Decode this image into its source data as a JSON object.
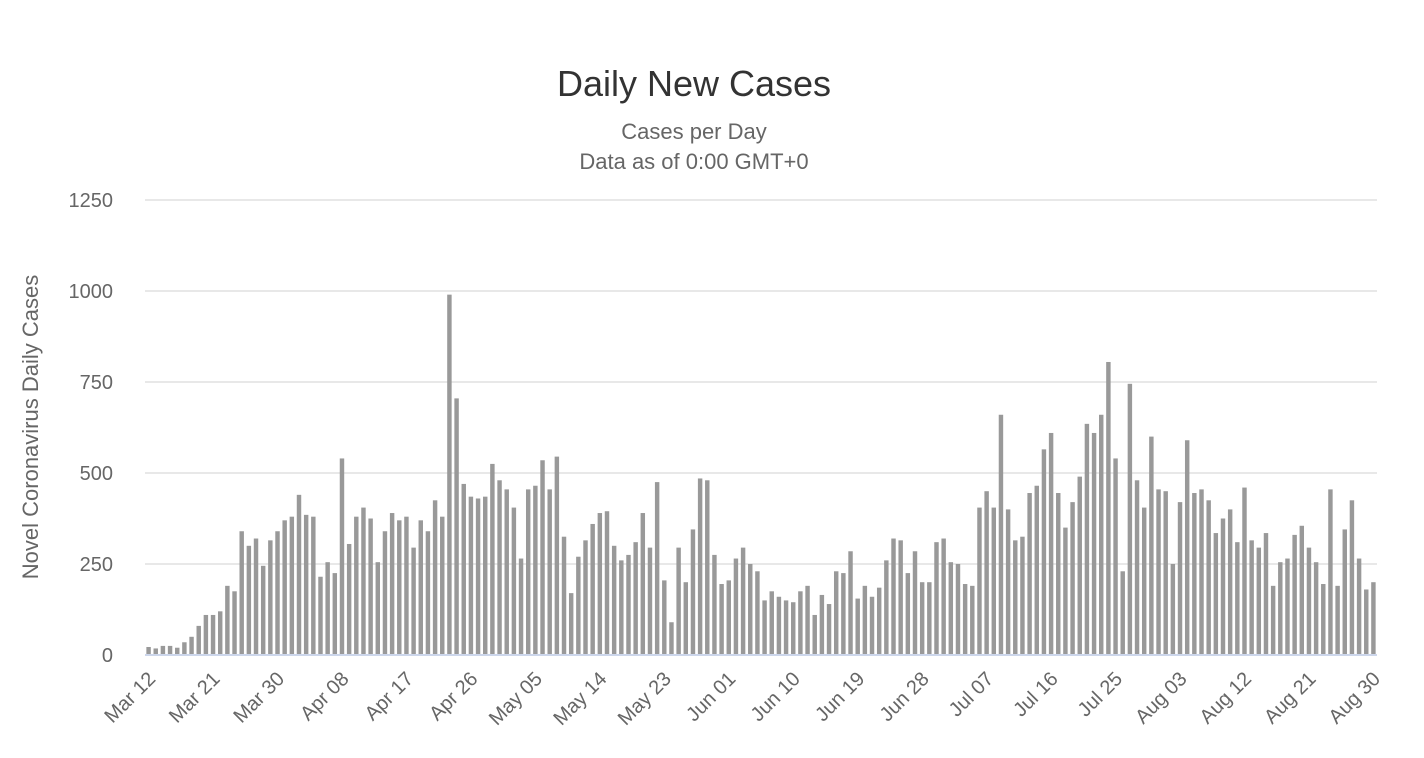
{
  "chart_data": {
    "type": "bar",
    "title": "Daily New Cases",
    "subtitle_lines": [
      "Cases per Day",
      "Data as of 0:00 GMT+0"
    ],
    "ylabel": "Novel Coronavirus Daily Cases",
    "ylim": [
      0,
      1250
    ],
    "yticks": [
      "0",
      "250",
      "500",
      "750",
      "1000",
      "1250"
    ],
    "ytick_values": [
      0,
      250,
      500,
      750,
      1000,
      1250
    ],
    "grid": true,
    "legend": "none",
    "xtick_labels": [
      "Mar 12",
      "Mar 21",
      "Mar 30",
      "Apr 08",
      "Apr 17",
      "Apr 26",
      "May 05",
      "May 14",
      "May 23",
      "Jun 01",
      "Jun 10",
      "Jun 19",
      "Jun 28",
      "Jul 07",
      "Jul 16",
      "Jul 25",
      "Aug 03",
      "Aug 12",
      "Aug 21",
      "Aug 30"
    ],
    "start_date": "Mar 12",
    "series": [
      {
        "name": "Daily Cases",
        "color": "#999999",
        "values": [
          22,
          18,
          25,
          25,
          20,
          35,
          50,
          80,
          110,
          110,
          120,
          190,
          175,
          340,
          300,
          320,
          245,
          315,
          340,
          370,
          380,
          440,
          385,
          380,
          215,
          255,
          225,
          540,
          305,
          380,
          405,
          375,
          255,
          340,
          390,
          370,
          380,
          295,
          370,
          340,
          425,
          380,
          990,
          705,
          470,
          435,
          430,
          435,
          525,
          480,
          455,
          405,
          265,
          455,
          465,
          535,
          455,
          545,
          325,
          170,
          270,
          315,
          360,
          390,
          395,
          300,
          260,
          275,
          310,
          390,
          295,
          475,
          205,
          90,
          295,
          200,
          345,
          485,
          480,
          275,
          195,
          205,
          265,
          295,
          250,
          230,
          150,
          175,
          160,
          150,
          145,
          175,
          190,
          110,
          165,
          140,
          230,
          225,
          285,
          155,
          190,
          160,
          185,
          260,
          320,
          315,
          225,
          285,
          200,
          200,
          310,
          320,
          255,
          250,
          195,
          190,
          405,
          450,
          405,
          660,
          400,
          315,
          325,
          445,
          465,
          565,
          610,
          445,
          350,
          420,
          490,
          635,
          610,
          660,
          805,
          540,
          230,
          745,
          480,
          405,
          600,
          455,
          450,
          250,
          420,
          590,
          445,
          455,
          425,
          335,
          375,
          400,
          310,
          460,
          315,
          295,
          335,
          190,
          255,
          265,
          330,
          355,
          295,
          255,
          195,
          455,
          190,
          345,
          425,
          265,
          180,
          200
        ]
      }
    ]
  }
}
